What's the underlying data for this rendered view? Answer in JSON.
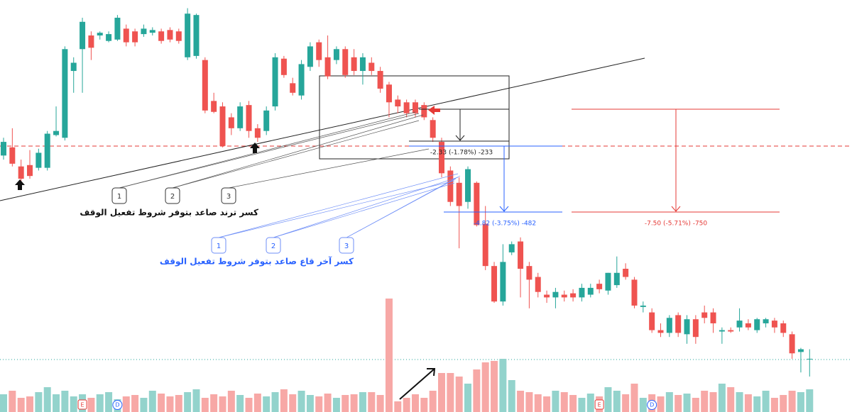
{
  "chart_data": {
    "type": "candlestick",
    "open": [
      127.8,
      128.4,
      127.0,
      127.1,
      126.9,
      126.9,
      129.3,
      129.1,
      134.0,
      135.6,
      136.6,
      136.6,
      136.2,
      136.3,
      137.1,
      136.9,
      136.7,
      136.8,
      136.9,
      137.0,
      136.9,
      135.0,
      135.1,
      134.8,
      131.8,
      131.4,
      130.6,
      129.8,
      131.5,
      129.8,
      129.6,
      131.4,
      134.9,
      133.1,
      132.2,
      134.3,
      136.1,
      135.0,
      134.8,
      135.6,
      135.0,
      134.0,
      134.6,
      134.0,
      133.0,
      131.9,
      131.7,
      131.7,
      131.5,
      130.4,
      128.8,
      126.7,
      125.8,
      124.4,
      125.8,
      122.8,
      119.7,
      117.1,
      120.7,
      121.5,
      119.7,
      118.9,
      117.6,
      117.4,
      117.6,
      117.7,
      117.4,
      117.6,
      118.4,
      117.9,
      118.3,
      119.5,
      118.7,
      116.7,
      116.3,
      115.0,
      114.8,
      116.1,
      114.7,
      115.8,
      116.3,
      116.3,
      114.9,
      115.0,
      115.2,
      115.5,
      115.0,
      115.5,
      115.7,
      115.5,
      114.7,
      113.4,
      112.9
    ],
    "high": [
      129.1,
      129.8,
      127.5,
      128.2,
      128.3,
      129.6,
      131.4,
      135.8,
      135.0,
      137.9,
      136.9,
      136.9,
      136.9,
      138.1,
      137.4,
      137.1,
      137.4,
      137.2,
      137.1,
      137.2,
      137.1,
      138.6,
      138.2,
      135.0,
      132.4,
      131.7,
      130.9,
      131.7,
      131.8,
      130.1,
      131.4,
      135.3,
      135.1,
      133.5,
      134.8,
      136.1,
      136.3,
      136.6,
      135.8,
      135.8,
      135.6,
      135.3,
      135.0,
      134.3,
      133.2,
      132.2,
      131.9,
      131.9,
      131.7,
      130.6,
      129.1,
      127.0,
      126.2,
      127.0,
      125.9,
      124.1,
      120.0,
      121.3,
      121.5,
      121.8,
      120.0,
      119.2,
      117.9,
      118.1,
      117.9,
      118.0,
      118.4,
      118.4,
      118.7,
      119.2,
      120.4,
      119.9,
      118.9,
      117.1,
      116.6,
      115.5,
      116.1,
      116.3,
      116.1,
      116.1,
      116.8,
      116.6,
      115.2,
      115.2,
      116.6,
      115.8,
      115.9,
      115.9,
      115.9,
      115.7,
      114.9,
      113.7,
      113.6
    ],
    "low": [
      127.5,
      127.0,
      125.9,
      126.1,
      126.7,
      126.7,
      129.2,
      128.9,
      132.4,
      132.4,
      134.8,
      136.3,
      136.1,
      136.2,
      135.8,
      135.8,
      136.5,
      136.6,
      136.0,
      136.1,
      136.0,
      134.8,
      134.9,
      130.9,
      130.9,
      128.4,
      129.3,
      129.6,
      129.1,
      128.8,
      129.3,
      131.1,
      133.5,
      132.2,
      131.9,
      134.0,
      134.3,
      133.4,
      134.5,
      133.5,
      133.7,
      133.0,
      133.7,
      132.4,
      130.6,
      130.9,
      130.6,
      130.6,
      130.4,
      128.8,
      126.2,
      124.1,
      121.0,
      123.9,
      122.6,
      119.4,
      117.0,
      116.8,
      120.5,
      117.4,
      116.6,
      117.4,
      117.0,
      116.6,
      117.1,
      117.1,
      117.1,
      117.4,
      117.7,
      117.6,
      118.1,
      118.7,
      116.6,
      116.3,
      114.8,
      114.5,
      114.5,
      114.5,
      114.0,
      114.0,
      115.5,
      114.8,
      114.0,
      114.8,
      114.9,
      115.0,
      114.8,
      115.2,
      114.8,
      114.5,
      112.9,
      111.9,
      111.6
    ],
    "close": [
      128.8,
      127.2,
      126.1,
      126.3,
      128.0,
      129.4,
      129.6,
      135.6,
      134.6,
      137.6,
      135.7,
      136.8,
      136.7,
      137.9,
      136.1,
      136.1,
      137.1,
      137.0,
      136.2,
      136.3,
      136.2,
      138.2,
      138.1,
      131.1,
      131.0,
      128.5,
      129.8,
      131.4,
      129.6,
      129.1,
      131.1,
      135.0,
      133.7,
      132.4,
      134.5,
      135.8,
      134.8,
      133.6,
      135.6,
      133.7,
      134.0,
      135.0,
      134.0,
      132.7,
      131.7,
      131.4,
      130.9,
      130.9,
      130.6,
      129.1,
      126.5,
      124.4,
      124.1,
      126.8,
      122.7,
      119.7,
      117.1,
      120.0,
      121.3,
      119.5,
      118.7,
      117.8,
      117.4,
      117.8,
      117.4,
      117.4,
      118.1,
      118.1,
      118.0,
      119.2,
      119.2,
      118.9,
      116.8,
      116.8,
      115.0,
      114.8,
      115.9,
      114.8,
      115.8,
      114.5,
      115.9,
      115.5,
      115.0,
      114.9,
      115.7,
      115.2,
      115.8,
      115.8,
      115.2,
      114.8,
      113.3,
      113.6,
      112.9
    ],
    "volume": [
      25,
      30,
      20,
      22,
      28,
      35,
      25,
      30,
      22,
      25,
      20,
      25,
      28,
      18,
      22,
      24,
      20,
      30,
      26,
      22,
      24,
      28,
      32,
      20,
      25,
      22,
      30,
      24,
      20,
      26,
      22,
      28,
      32,
      25,
      30,
      24,
      22,
      26,
      20,
      24,
      25,
      28,
      28,
      24,
      160,
      15,
      20,
      25,
      20,
      30,
      55,
      55,
      50,
      40,
      60,
      70,
      72,
      75,
      45,
      30,
      28,
      25,
      22,
      30,
      28,
      24,
      20,
      26,
      22,
      35,
      30,
      25,
      40,
      20,
      25,
      22,
      28,
      24,
      26,
      20,
      30,
      28,
      40,
      35,
      28,
      25,
      22,
      30,
      20,
      24,
      30,
      28,
      32
    ],
    "ylim": [
      109,
      139.2
    ],
    "vlim": [
      0,
      180
    ],
    "up_color": "#26a69a",
    "down_color": "#ef5350",
    "up_volume_color": "#93d3cc",
    "down_volume_color": "#f7a8a6",
    "trend_break_label": "كسر ترند صاعد بتوفر شروط تفعيل الوقف",
    "low_break_label": "كسر آخر قاع صاعد بتوفر شروط تفعيل الوقف",
    "trend_steps": [
      "1",
      "2",
      "3"
    ],
    "low_steps": [
      "1",
      "2",
      "3"
    ],
    "measure_labels": [
      "-2.33 (-1.78%) -233",
      "-4.82 (-3.75%) -482",
      "-7.50 (-5.71%) -750"
    ],
    "events": [
      "E",
      "D",
      "E",
      "D"
    ]
  }
}
